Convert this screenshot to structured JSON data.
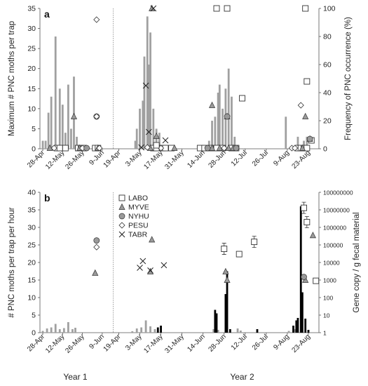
{
  "figure": {
    "year_labels": [
      "Year 1",
      "Year 2"
    ],
    "year_label_dates": [
      "2013-05-21",
      "2014-07-10"
    ]
  },
  "chart_data": [
    {
      "type": "bar",
      "panel_label": "a",
      "ylabel": "Maximum # PNC moths per trap",
      "ylabel_right": "Frequency of PNC occurrence (%)",
      "ylim": [
        0,
        35
      ],
      "yticks": [
        0,
        5,
        10,
        15,
        20,
        25,
        30,
        35
      ],
      "ylim_right": [
        0,
        100
      ],
      "yticks_right": [
        0,
        20,
        40,
        60,
        80,
        100
      ],
      "bar_color": "#a0a0a0",
      "series": [
        {
          "name": "Maximum # PNC moths per trap",
          "kind": "bar",
          "points": [
            {
              "x": "2013-04-28",
              "y": 2
            },
            {
              "x": "2013-05-02",
              "y": 9
            },
            {
              "x": "2013-05-04",
              "y": 13
            },
            {
              "x": "2013-05-07",
              "y": 28
            },
            {
              "x": "2013-05-10",
              "y": 15
            },
            {
              "x": "2013-05-12",
              "y": 11
            },
            {
              "x": "2013-05-14",
              "y": 4
            },
            {
              "x": "2013-05-16",
              "y": 16
            },
            {
              "x": "2013-05-18",
              "y": 5
            },
            {
              "x": "2013-05-20",
              "y": 18
            },
            {
              "x": "2013-05-22",
              "y": 3
            },
            {
              "x": "2013-04-30",
              "y": 2
            },
            {
              "x": "2014-04-30",
              "y": 2
            },
            {
              "x": "2014-05-01",
              "y": 5
            },
            {
              "x": "2014-05-03",
              "y": 10
            },
            {
              "x": "2014-05-05",
              "y": 12
            },
            {
              "x": "2014-05-06",
              "y": 23
            },
            {
              "x": "2014-05-08",
              "y": 33
            },
            {
              "x": "2014-05-09",
              "y": 21
            },
            {
              "x": "2014-05-10",
              "y": 29
            },
            {
              "x": "2014-05-12",
              "y": 10
            },
            {
              "x": "2014-05-14",
              "y": 5
            },
            {
              "x": "2014-05-16",
              "y": 4
            },
            {
              "x": "2014-06-18",
              "y": 2
            },
            {
              "x": "2014-06-20",
              "y": 7
            },
            {
              "x": "2014-06-22",
              "y": 8
            },
            {
              "x": "2014-06-24",
              "y": 14
            },
            {
              "x": "2014-06-25",
              "y": 16
            },
            {
              "x": "2014-06-27",
              "y": 10
            },
            {
              "x": "2014-06-29",
              "y": 15
            },
            {
              "x": "2014-07-01",
              "y": 20
            },
            {
              "x": "2014-07-03",
              "y": 13
            },
            {
              "x": "2014-07-05",
              "y": 3
            },
            {
              "x": "2014-08-08",
              "y": 8
            },
            {
              "x": "2014-08-16",
              "y": 3
            },
            {
              "x": "2014-08-20",
              "y": 2
            },
            {
              "x": "2014-08-22",
              "y": 3
            }
          ]
        },
        {
          "name": "LABO",
          "kind": "marker",
          "marker": "square-open",
          "points": [
            {
              "x": "2014-05-14",
              "y": 2.5
            },
            {
              "x": "2014-06-23",
              "y": 100
            },
            {
              "x": "2014-06-30",
              "y": 100
            },
            {
              "x": "2014-07-10",
              "y": 36
            },
            {
              "x": "2014-08-21",
              "y": 100
            },
            {
              "x": "2014-08-22",
              "y": 48
            },
            {
              "x": "2014-08-25",
              "y": 6
            }
          ]
        },
        {
          "name": "MYVE",
          "kind": "marker",
          "marker": "triangle-gray",
          "points": [
            {
              "x": "2013-05-20",
              "y": 23
            },
            {
              "x": "2014-05-11",
              "y": 100
            },
            {
              "x": "2014-05-14",
              "y": 9
            },
            {
              "x": "2014-06-20",
              "y": 31
            },
            {
              "x": "2014-06-30",
              "y": 23
            },
            {
              "x": "2014-08-21",
              "y": 23
            },
            {
              "x": "2014-08-24",
              "y": 7
            }
          ]
        },
        {
          "name": "NYHU",
          "kind": "marker",
          "marker": "circle-gray",
          "points": [
            {
              "x": "2013-06-05",
              "y": 23
            },
            {
              "x": "2014-06-30",
              "y": 23
            },
            {
              "x": "2014-08-24",
              "y": 7
            }
          ]
        },
        {
          "name": "PESU",
          "kind": "marker",
          "marker": "diamond-open",
          "points": [
            {
              "x": "2013-06-05",
              "y": 92
            },
            {
              "x": "2013-06-05",
              "y": 23
            },
            {
              "x": "2014-05-08",
              "y": 1
            },
            {
              "x": "2014-08-18",
              "y": 31
            }
          ]
        },
        {
          "name": "TABR",
          "kind": "marker",
          "marker": "x",
          "points": [
            {
              "x": "2014-05-07",
              "y": 45
            },
            {
              "x": "2014-05-09",
              "y": 12
            },
            {
              "x": "2014-05-12",
              "y": 100
            },
            {
              "x": "2014-05-20",
              "y": 6
            },
            {
              "x": "2014-05-04",
              "y": 1
            }
          ]
        }
      ],
      "baseline_points": [
        {
          "marker": "square-open",
          "dates": [
            "2013-05-08",
            "2013-05-10",
            "2013-05-14",
            "2013-05-23",
            "2013-05-25",
            "2013-05-27",
            "2013-06-04",
            "2013-06-06",
            "2014-05-12",
            "2014-05-14",
            "2014-05-18",
            "2014-05-20",
            "2014-05-24",
            "2014-06-12",
            "2014-06-15",
            "2014-06-19",
            "2014-06-23",
            "2014-06-27",
            "2014-07-03",
            "2014-07-06",
            "2014-08-16",
            "2014-08-18",
            "2014-08-20",
            "2014-08-22"
          ]
        },
        {
          "marker": "triangle-gray",
          "dates": [
            "2013-05-03",
            "2013-05-24",
            "2013-06-06",
            "2014-05-10",
            "2014-05-26",
            "2014-06-20",
            "2014-06-25",
            "2014-07-01",
            "2014-07-04",
            "2014-08-19"
          ]
        },
        {
          "marker": "diamond-open",
          "dates": [
            "2013-05-06",
            "2013-05-26",
            "2013-06-07",
            "2014-05-17",
            "2014-06-28",
            "2014-08-12",
            "2014-08-14"
          ]
        },
        {
          "marker": "circle-gray",
          "dates": [
            "2013-05-29",
            "2014-06-17",
            "2014-07-06"
          ]
        }
      ]
    },
    {
      "type": "bar",
      "panel_label": "b",
      "ylabel": "# PNC moths per trap per hour",
      "ylabel_right": "Gene copy / g fecal material",
      "ylim": [
        0,
        40
      ],
      "yticks": [
        0,
        5,
        10,
        15,
        20,
        25,
        30,
        35,
        40
      ],
      "ylim_right": [
        1,
        100000000
      ],
      "yscale_right": "log",
      "yticks_right": [
        1,
        10,
        100,
        1000,
        10000,
        100000,
        1000000,
        10000000,
        100000000
      ],
      "yticklabels_right": [
        "1",
        "10",
        "100",
        "1000",
        "10000",
        "100000",
        "1000000",
        "10000000",
        "100000000"
      ],
      "bar_color": "#a0a0a0",
      "bar_color_2": "#000000",
      "legend": {
        "placement": "top-left of Year 2",
        "entries": [
          {
            "label": "LABO",
            "marker": "square-open"
          },
          {
            "label": "MYVE",
            "marker": "triangle-gray"
          },
          {
            "label": "NYHU",
            "marker": "circle-gray"
          },
          {
            "label": "PESU",
            "marker": "diamond-open"
          },
          {
            "label": "TABR",
            "marker": "x"
          }
        ]
      },
      "series": [
        {
          "name": "# PNC moths per trap per hour",
          "kind": "bar",
          "color": "#a0a0a0",
          "points": [
            {
              "x": "2013-04-28",
              "y": 0.5
            },
            {
              "x": "2013-05-01",
              "y": 1.2
            },
            {
              "x": "2013-05-04",
              "y": 1.5
            },
            {
              "x": "2013-05-07",
              "y": 2.5
            },
            {
              "x": "2013-05-10",
              "y": 1.0
            },
            {
              "x": "2013-05-13",
              "y": 1.3
            },
            {
              "x": "2013-05-16",
              "y": 3.0
            },
            {
              "x": "2013-05-19",
              "y": 1.0
            },
            {
              "x": "2013-05-21",
              "y": 1.4
            },
            {
              "x": "2014-04-28",
              "y": 0.4
            },
            {
              "x": "2014-05-01",
              "y": 1.2
            },
            {
              "x": "2014-05-04",
              "y": 1.5
            },
            {
              "x": "2014-05-07",
              "y": 3.5
            },
            {
              "x": "2014-05-10",
              "y": 1.8
            },
            {
              "x": "2014-05-13",
              "y": 1.0
            },
            {
              "x": "2014-06-21",
              "y": 1.0
            },
            {
              "x": "2014-06-24",
              "y": 0.8
            },
            {
              "x": "2014-07-07",
              "y": 1.2
            },
            {
              "x": "2014-07-09",
              "y": 0.6
            },
            {
              "x": "2014-08-10",
              "y": 0.5
            },
            {
              "x": "2014-08-14",
              "y": 1.0
            }
          ]
        },
        {
          "name": "",
          "kind": "bar",
          "color": "#000000",
          "points": [
            {
              "x": "2014-05-15",
              "y": 1.5
            },
            {
              "x": "2014-05-17",
              "y": 2.0
            },
            {
              "x": "2014-06-22",
              "y": 6.5
            },
            {
              "x": "2014-06-23",
              "y": 5.5
            },
            {
              "x": "2014-06-29",
              "y": 11.0
            },
            {
              "x": "2014-06-30",
              "y": 17.5
            },
            {
              "x": "2014-07-02",
              "y": 1.0
            },
            {
              "x": "2014-07-20",
              "y": 1.0
            },
            {
              "x": "2014-08-13",
              "y": 2.0
            },
            {
              "x": "2014-08-15",
              "y": 3.5
            },
            {
              "x": "2014-08-16",
              "y": 4.2
            },
            {
              "x": "2014-08-18",
              "y": 36.0
            },
            {
              "x": "2014-08-19",
              "y": 11.5
            },
            {
              "x": "2014-08-21",
              "y": 4.0
            },
            {
              "x": "2014-08-23",
              "y": 0.8
            }
          ]
        },
        {
          "name": "LABO",
          "kind": "marker",
          "marker": "square-open",
          "axis": "right",
          "points": [
            {
              "x": "2014-06-28",
              "y": 60000
            },
            {
              "x": "2014-07-08",
              "y": 30000
            },
            {
              "x": "2014-07-18",
              "y": 150000
            },
            {
              "x": "2014-08-20",
              "y": 13000000
            },
            {
              "x": "2014-08-22",
              "y": 2000000
            },
            {
              "x": "2014-08-28",
              "y": 900
            }
          ]
        },
        {
          "name": "MYVE",
          "kind": "marker",
          "marker": "triangle-gray",
          "axis": "right",
          "points": [
            {
              "x": "2013-06-04",
              "y": 2500
            },
            {
              "x": "2014-05-11",
              "y": 200000
            },
            {
              "x": "2014-05-10",
              "y": 3000
            },
            {
              "x": "2014-06-29",
              "y": 3000
            },
            {
              "x": "2014-06-30",
              "y": 1000
            },
            {
              "x": "2014-08-21",
              "y": 1000
            },
            {
              "x": "2014-08-26",
              "y": 350000
            }
          ]
        },
        {
          "name": "NYHU",
          "kind": "marker",
          "marker": "circle-gray",
          "axis": "right",
          "points": [
            {
              "x": "2013-06-05",
              "y": 180000
            },
            {
              "x": "2014-08-20",
              "y": 1500
            }
          ]
        },
        {
          "name": "PESU",
          "kind": "marker",
          "marker": "diamond-open",
          "axis": "right",
          "points": [
            {
              "x": "2013-06-05",
              "y": 75000
            }
          ]
        },
        {
          "name": "TABR",
          "kind": "marker",
          "marker": "x",
          "axis": "right",
          "points": [
            {
              "x": "2014-05-03",
              "y": 5000
            },
            {
              "x": "2014-05-05",
              "y": 12000
            },
            {
              "x": "2014-05-10",
              "y": 3500
            },
            {
              "x": "2014-05-19",
              "y": 7000
            }
          ]
        }
      ],
      "error_bars": [
        {
          "x": "2014-06-28",
          "y": 60000
        },
        {
          "x": "2014-07-18",
          "y": 150000
        },
        {
          "x": "2014-08-20",
          "y": 13000000
        },
        {
          "x": "2014-08-22",
          "y": 2000000
        }
      ]
    }
  ],
  "xaxis": {
    "segments": [
      {
        "start": "2013-04-26",
        "end": "2013-06-16",
        "ticks": [
          {
            "date": "2013-04-28",
            "label": "28-Apr"
          },
          {
            "date": "2013-05-12",
            "label": "12-May"
          },
          {
            "date": "2013-05-26",
            "label": "26-May"
          },
          {
            "date": "2013-06-09",
            "label": "9-Jun"
          }
        ]
      },
      {
        "start": "2014-04-16",
        "end": "2014-08-30",
        "ticks": [
          {
            "date": "2014-04-19",
            "label": "19-Apr"
          },
          {
            "date": "2014-05-03",
            "label": "3-May"
          },
          {
            "date": "2014-05-17",
            "label": "17-May"
          },
          {
            "date": "2014-05-31",
            "label": "31-May"
          },
          {
            "date": "2014-06-14",
            "label": "14-Jun"
          },
          {
            "date": "2014-06-28",
            "label": "28-Jun"
          },
          {
            "date": "2014-07-12",
            "label": "12-Jul"
          },
          {
            "date": "2014-07-26",
            "label": "26-Jul"
          },
          {
            "date": "2014-08-09",
            "label": "9-Aug"
          },
          {
            "date": "2014-08-23",
            "label": "23-Aug"
          }
        ]
      }
    ]
  }
}
